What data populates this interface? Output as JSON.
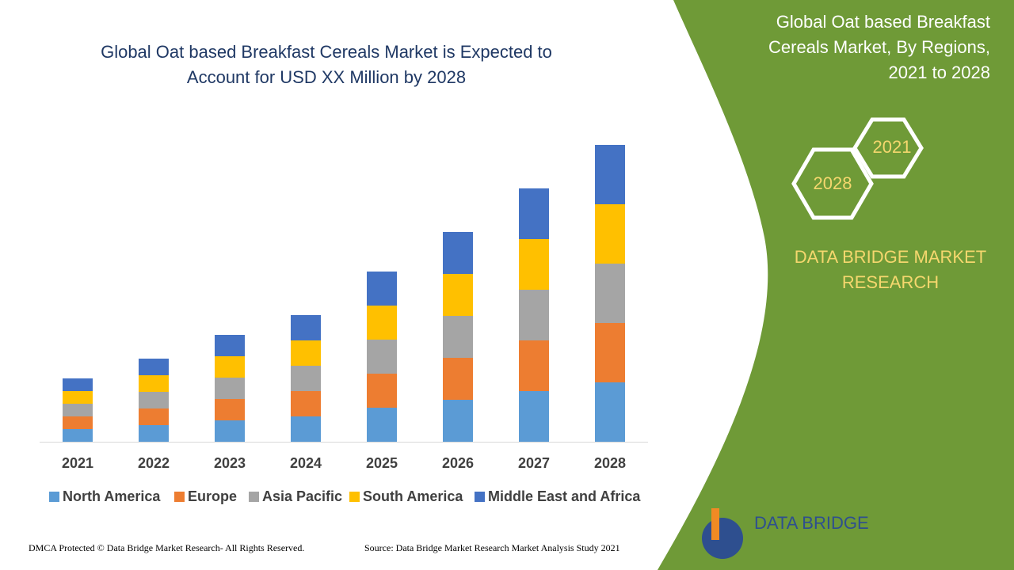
{
  "chart_data": {
    "type": "stacked_bar",
    "title": [
      "Global Oat based Breakfast Cereals Market is Expected to",
      "Account for USD XX Million by 2028"
    ],
    "categories": [
      "2021",
      "2022",
      "2023",
      "2024",
      "2025",
      "2026",
      "2027",
      "2028"
    ],
    "series": [
      {
        "name": "North America",
        "color": "#5b9bd5",
        "values": [
          16,
          21,
          27,
          32,
          43,
          53,
          64,
          75
        ]
      },
      {
        "name": "Europe",
        "color": "#ed7d31",
        "values": [
          16,
          21,
          27,
          32,
          43,
          53,
          64,
          75
        ]
      },
      {
        "name": "Asia Pacific",
        "color": "#a5a5a5",
        "values": [
          16,
          21,
          27,
          32,
          43,
          53,
          64,
          75
        ]
      },
      {
        "name": "South America",
        "color": "#ffc000",
        "values": [
          16,
          21,
          27,
          32,
          43,
          53,
          64,
          75
        ]
      },
      {
        "name": "Middle East and Africa",
        "color": "#4472c4",
        "values": [
          16,
          21,
          27,
          32,
          43,
          53,
          64,
          75
        ]
      }
    ]
  },
  "panel": {
    "title": [
      "Global Oat based Breakfast",
      "Cereals Market, By Regions,",
      "2021 to 2028"
    ],
    "hex_start": "2021",
    "hex_end": "2028",
    "brand": [
      "DATA BRIDGE MARKET",
      "RESEARCH"
    ],
    "logo": "DATA BRIDGE"
  },
  "footer": {
    "copyright": "DMCA Protected © Data Bridge Market Research- All Rights Reserved.",
    "source": "Source: Data Bridge Market Research Market Analysis Study 2021"
  }
}
